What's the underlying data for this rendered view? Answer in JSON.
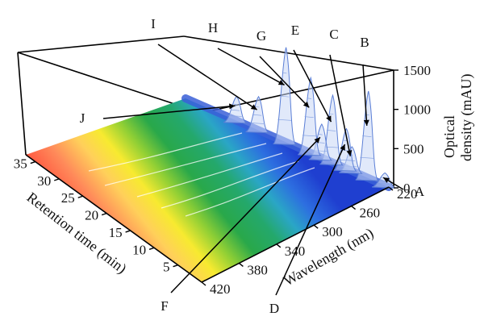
{
  "chart_data": {
    "type": "surface-3d",
    "x_axis": {
      "title": "Wavelength (nm)",
      "ticks": [
        "220",
        "260",
        "300",
        "340",
        "380",
        "420"
      ],
      "range": [
        220,
        420
      ]
    },
    "y_axis": {
      "title": "Retention time (min)",
      "ticks": [
        "35",
        "30",
        "25",
        "20",
        "15",
        "10",
        "5"
      ],
      "range": [
        0,
        37
      ]
    },
    "z_axis": {
      "title_line1": "Optical",
      "title_line2": "density (mAU)",
      "ticks": [
        "0",
        "500",
        "1000",
        "1500"
      ],
      "range": [
        0,
        1500
      ]
    },
    "peak_labels": [
      "A",
      "B",
      "C",
      "D",
      "E",
      "F",
      "G",
      "H",
      "I",
      "J"
    ],
    "peaks": [
      {
        "label": "A",
        "retention_min": 1.0,
        "optical_density": 150
      },
      {
        "label": "B",
        "retention_min": 4.0,
        "optical_density": 1100
      },
      {
        "label": "C",
        "retention_min": 7.0,
        "optical_density": 300
      },
      {
        "label": "D",
        "retention_min": 8.0,
        "optical_density": 500
      },
      {
        "label": "E",
        "retention_min": 10.5,
        "optical_density": 850
      },
      {
        "label": "F",
        "retention_min": 12.5,
        "optical_density": 420
      },
      {
        "label": "G",
        "retention_min": 14.5,
        "optical_density": 950
      },
      {
        "label": "H",
        "retention_min": 19.0,
        "optical_density": 1200
      },
      {
        "label": "I",
        "retention_min": 24.0,
        "optical_density": 420
      },
      {
        "label": "J",
        "retention_min": 28.0,
        "optical_density": 300
      }
    ]
  }
}
